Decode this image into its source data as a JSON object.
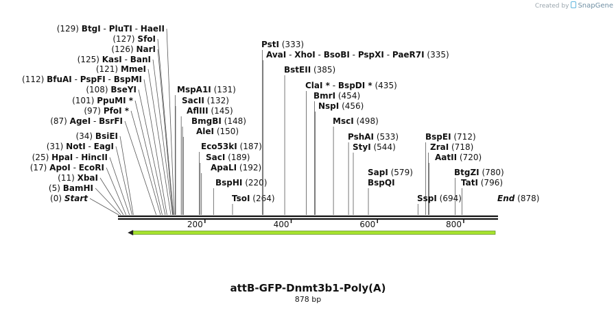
{
  "branding": {
    "prefix": "Created by",
    "name": "SnapGene"
  },
  "sequence": {
    "name": "attB-GFP-Dnmt3b1-Poly(A)",
    "length_label": "878 bp",
    "length": 878
  },
  "axis": {
    "ticks": [
      200,
      400,
      600,
      800
    ]
  },
  "feature": {
    "name": "arrow",
    "start": 40,
    "end": 878,
    "direction": "reverse",
    "color": "#a6e22e"
  },
  "sites": [
    {
      "names": [
        "BtgI",
        "PluTI",
        "HaeII"
      ],
      "pos": 129,
      "side": "left"
    },
    {
      "names": [
        "SfoI"
      ],
      "pos": 127,
      "side": "left"
    },
    {
      "names": [
        "NarI"
      ],
      "pos": 126,
      "side": "left"
    },
    {
      "names": [
        "KasI",
        "BanI"
      ],
      "pos": 125,
      "side": "left"
    },
    {
      "names": [
        "MmeI"
      ],
      "pos": 121,
      "side": "left"
    },
    {
      "names": [
        "BfuAI",
        "PspFI",
        "BspMI"
      ],
      "pos": 112,
      "side": "left"
    },
    {
      "names": [
        "BseYI"
      ],
      "pos": 108,
      "side": "left"
    },
    {
      "names": [
        "PpuMI *"
      ],
      "pos": 101,
      "side": "left"
    },
    {
      "names": [
        "PfoI *"
      ],
      "pos": 97,
      "side": "left"
    },
    {
      "names": [
        "AgeI",
        "BsrFI"
      ],
      "pos": 87,
      "side": "left"
    },
    {
      "names": [
        "BsiEI"
      ],
      "pos": 34,
      "side": "left"
    },
    {
      "names": [
        "NotI",
        "EagI"
      ],
      "pos": 31,
      "side": "left"
    },
    {
      "names": [
        "HpaI",
        "HincII"
      ],
      "pos": 25,
      "side": "left"
    },
    {
      "names": [
        "ApoI",
        "EcoRI"
      ],
      "pos": 17,
      "side": "left"
    },
    {
      "names": [
        "XbaI"
      ],
      "pos": 11,
      "side": "left"
    },
    {
      "names": [
        "BamHI"
      ],
      "pos": 5,
      "side": "left"
    },
    {
      "names": [
        "Start"
      ],
      "pos": 0,
      "side": "left",
      "italic": true
    },
    {
      "names": [
        "MspA1I"
      ],
      "pos": 131,
      "side": "right"
    },
    {
      "names": [
        "SacII"
      ],
      "pos": 132,
      "side": "right"
    },
    {
      "names": [
        "AflIII"
      ],
      "pos": 145,
      "side": "right"
    },
    {
      "names": [
        "BmgBI"
      ],
      "pos": 148,
      "side": "right"
    },
    {
      "names": [
        "AleI"
      ],
      "pos": 150,
      "side": "right"
    },
    {
      "names": [
        "Eco53kI"
      ],
      "pos": 187,
      "side": "right"
    },
    {
      "names": [
        "SacI"
      ],
      "pos": 189,
      "side": "right"
    },
    {
      "names": [
        "ApaLI"
      ],
      "pos": 192,
      "side": "right"
    },
    {
      "names": [
        "BspHI"
      ],
      "pos": 220,
      "side": "right"
    },
    {
      "names": [
        "TsoI"
      ],
      "pos": 264,
      "side": "right"
    },
    {
      "names": [
        "PstI"
      ],
      "pos": 333,
      "side": "right"
    },
    {
      "names": [
        "AvaI",
        "XhoI",
        "BsoBI",
        "PspXI",
        "PaeR7I"
      ],
      "pos": 335,
      "side": "right"
    },
    {
      "names": [
        "BstEII"
      ],
      "pos": 385,
      "side": "right"
    },
    {
      "names": [
        "ClaI *",
        "BspDI *"
      ],
      "pos": 435,
      "side": "right"
    },
    {
      "names": [
        "BmrI"
      ],
      "pos": 454,
      "side": "right"
    },
    {
      "names": [
        "NspI"
      ],
      "pos": 456,
      "side": "right"
    },
    {
      "names": [
        "MscI"
      ],
      "pos": 498,
      "side": "right"
    },
    {
      "names": [
        "PshAI"
      ],
      "pos": 533,
      "side": "right"
    },
    {
      "names": [
        "StyI"
      ],
      "pos": 544,
      "side": "right"
    },
    {
      "names": [
        "SapI",
        "BspQI"
      ],
      "pos": 579,
      "side": "right",
      "stacked": true
    },
    {
      "names": [
        "BspEI"
      ],
      "pos": 712,
      "side": "right"
    },
    {
      "names": [
        "ZraI"
      ],
      "pos": 718,
      "side": "right"
    },
    {
      "names": [
        "AatII"
      ],
      "pos": 720,
      "side": "right"
    },
    {
      "names": [
        "SspI"
      ],
      "pos": 694,
      "side": "left-of-num"
    },
    {
      "names": [
        "BtgZI"
      ],
      "pos": 780,
      "side": "right"
    },
    {
      "names": [
        "TatI"
      ],
      "pos": 796,
      "side": "right"
    },
    {
      "names": [
        "End"
      ],
      "pos": 878,
      "side": "right",
      "italic": true
    }
  ]
}
